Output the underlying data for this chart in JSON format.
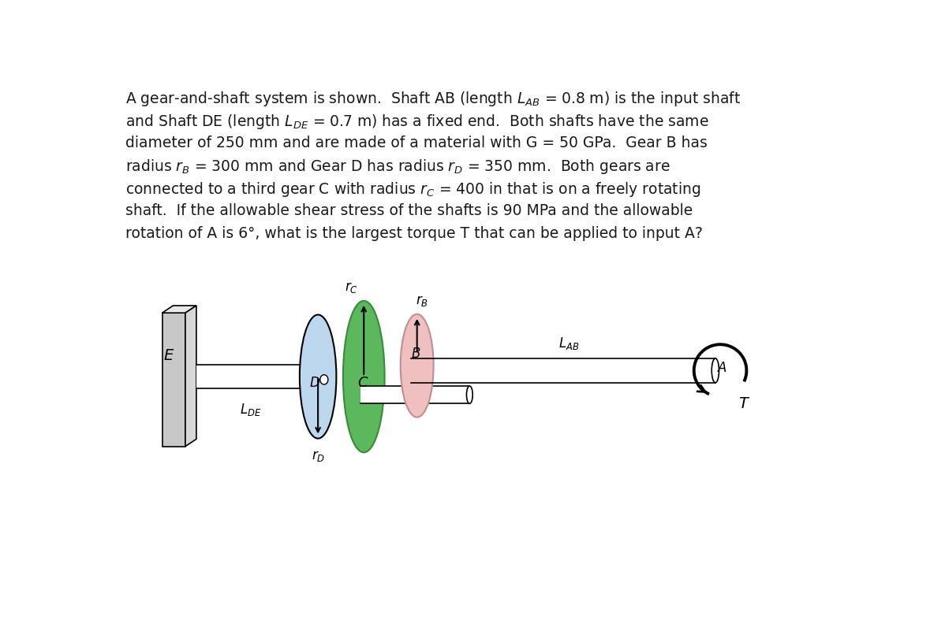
{
  "bg_color": "#ffffff",
  "text_color": "#1a1a1a",
  "paragraph_lines": [
    "A gear-and-shaft system is shown.  Shaft AB (length $L_{AB}$ = 0.8 m) is the input shaft",
    "and Shaft DE (length $L_{DE}$ = 0.7 m) has a fixed end.  Both shafts have the same",
    "diameter of 250 mm and are made of a material with G = 50 GPa.  Gear B has",
    "radius $r_B$ = 300 mm and Gear D has radius $r_D$ = 350 mm.  Both gears are",
    "connected to a third gear C with radius $r_C$ = 400 in that is on a freely rotating",
    "shaft.  If the allowable shear stress of the shafts is 90 MPa and the allowable",
    "rotation of A is 6°, what is the largest torque T that can be applied to input A?"
  ],
  "gear_D_color": "#bdd8ee",
  "gear_D_edge": "#7aaabb",
  "gear_C_color": "#5cb85c",
  "gear_C_edge": "#3a8a3a",
  "gear_B_color": "#f0c0c0",
  "gear_B_edge": "#c09090",
  "wall_face": "#c8c8c8",
  "wall_side": "#d8d8d8",
  "wall_top": "#e8e8e8"
}
